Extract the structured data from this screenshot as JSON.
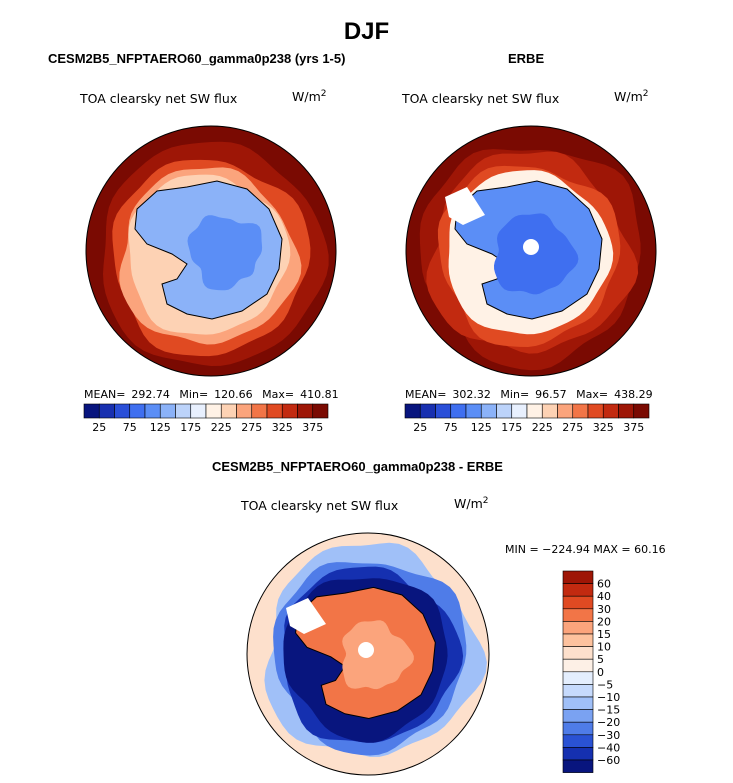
{
  "title": "DJF",
  "chart_data": [
    {
      "type": "heatmap",
      "title": "CESM2B5_NFPTAERO60_gamma0p238 (yrs 1-5)",
      "field": "TOA clearsky net SW flux",
      "units": "W/m",
      "units_exp": "2",
      "projection": "south polar stereographic",
      "stats": {
        "mean_label": "MEAN=",
        "mean": "292.74",
        "min_label": "Min=",
        "min": "120.66",
        "max_label": "Max=",
        "max": "410.81"
      },
      "colorbar_levels": [
        25,
        50,
        75,
        100,
        125,
        150,
        175,
        200,
        225,
        250,
        275,
        300,
        325,
        350,
        375
      ],
      "colorbar_labels": [
        "25",
        "75",
        "125",
        "175",
        "225",
        "275",
        "325",
        "375"
      ],
      "colorbar_colors": [
        "#08157e",
        "#1830b0",
        "#2a4fd8",
        "#3f6ff0",
        "#5b8ef6",
        "#8bb2f8",
        "#bcd3fa",
        "#e8f0fe",
        "#fff2e6",
        "#fdd2b4",
        "#fba47c",
        "#f27547",
        "#e04a22",
        "#c22a10",
        "#9e1606",
        "#7a0a02"
      ]
    },
    {
      "type": "heatmap",
      "title": "ERBE",
      "field": "TOA clearsky net SW flux",
      "units": "W/m",
      "units_exp": "2",
      "projection": "south polar stereographic",
      "stats": {
        "mean_label": "MEAN=",
        "mean": "302.32",
        "min_label": "Min=",
        "min": "96.57",
        "max_label": "Max=",
        "max": "438.29"
      },
      "colorbar_levels": [
        25,
        50,
        75,
        100,
        125,
        150,
        175,
        200,
        225,
        250,
        275,
        300,
        325,
        350,
        375
      ],
      "colorbar_labels": [
        "25",
        "75",
        "125",
        "175",
        "225",
        "275",
        "325",
        "375"
      ],
      "colorbar_colors": [
        "#08157e",
        "#1830b0",
        "#2a4fd8",
        "#3f6ff0",
        "#5b8ef6",
        "#8bb2f8",
        "#bcd3fa",
        "#e8f0fe",
        "#fff2e6",
        "#fdd2b4",
        "#fba47c",
        "#f27547",
        "#e04a22",
        "#c22a10",
        "#9e1606",
        "#7a0a02"
      ]
    },
    {
      "type": "heatmap",
      "title": "CESM2B5_NFPTAERO60_gamma0p238 - ERBE",
      "field": "TOA clearsky net SW flux",
      "units": "W/m",
      "units_exp": "2",
      "projection": "south polar stereographic",
      "stats_text": "MIN = −224.94 MAX =  60.16",
      "colorbar_levels": [
        -60,
        -40,
        -30,
        -20,
        -15,
        -10,
        -5,
        0,
        5,
        10,
        15,
        20,
        30,
        40,
        60
      ],
      "colorbar_labels": [
        "60",
        "40",
        "30",
        "20",
        "15",
        "10",
        "5",
        "0",
        "−5",
        "−10",
        "−15",
        "−20",
        "−30",
        "−40",
        "−60"
      ],
      "colorbar_colors": [
        "#9e1606",
        "#c22a10",
        "#e04a22",
        "#f27547",
        "#fba47c",
        "#fdc29e",
        "#fde0cc",
        "#fdf0e6",
        "#e4eefd",
        "#c6dafc",
        "#a0c0f8",
        "#7aa2f2",
        "#4f7ce8",
        "#2a52d4",
        "#1530b0",
        "#08157e"
      ]
    }
  ]
}
